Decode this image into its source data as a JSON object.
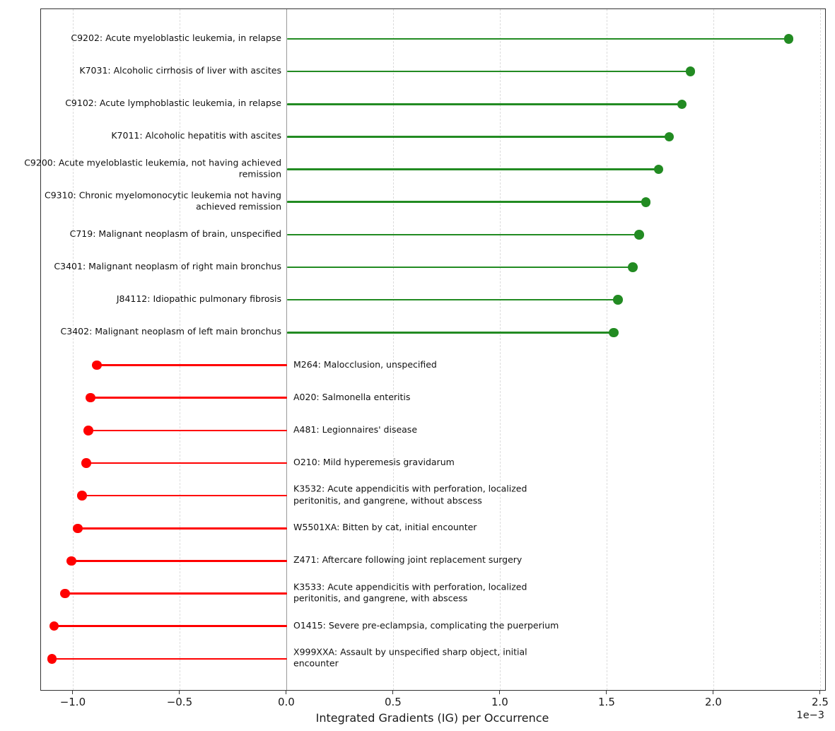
{
  "figure": {
    "background": "#ffffff"
  },
  "chart_data": {
    "type": "lollipop",
    "orientation": "horizontal",
    "title": "",
    "xlabel": "Integrated Gradients (IG) per Occurrence",
    "ylabel": "",
    "x_multiplier": "1e−3",
    "values_unit": "1e-3",
    "xlim": [
      -1.152,
      2.52
    ],
    "xticks": [
      -1.0,
      -0.5,
      0.0,
      0.5,
      1.0,
      1.5,
      2.0,
      2.5
    ],
    "grid": "vertical-dashed",
    "zero_line": true,
    "positive_color": "#228B22",
    "negative_color": "#ff0000",
    "items": [
      {
        "label": "C9202: Acute myeloblastic leukemia, in relapse",
        "value": 2.35
      },
      {
        "label": "K7031: Alcoholic cirrhosis of liver with ascites",
        "value": 1.89
      },
      {
        "label": "C9102: Acute lymphoblastic leukemia, in relapse",
        "value": 1.85
      },
      {
        "label": "K7011: Alcoholic hepatitis with ascites",
        "value": 1.79
      },
      {
        "label": "C9200: Acute myeloblastic leukemia, not having achieved\nremission",
        "value": 1.74
      },
      {
        "label": "C9310: Chronic myelomonocytic leukemia not having\nachieved remission",
        "value": 1.68
      },
      {
        "label": "C719: Malignant neoplasm of brain, unspecified",
        "value": 1.65
      },
      {
        "label": "C3401: Malignant neoplasm of right main bronchus",
        "value": 1.62
      },
      {
        "label": "J84112: Idiopathic pulmonary fibrosis",
        "value": 1.55
      },
      {
        "label": "C3402: Malignant neoplasm of left main bronchus",
        "value": 1.53
      },
      {
        "label": "M264: Malocclusion, unspecified",
        "value": -0.89
      },
      {
        "label": "A020: Salmonella enteritis",
        "value": -0.92
      },
      {
        "label": "A481: Legionnaires' disease",
        "value": -0.93
      },
      {
        "label": "O210: Mild hyperemesis gravidarum",
        "value": -0.94
      },
      {
        "label": "K3532: Acute appendicitis with perforation, localized\nperitonitis, and gangrene, without abscess",
        "value": -0.96
      },
      {
        "label": "W5501XA: Bitten by cat, initial encounter",
        "value": -0.98
      },
      {
        "label": "Z471: Aftercare following joint replacement surgery",
        "value": -1.01
      },
      {
        "label": "K3533: Acute appendicitis with perforation, localized\nperitonitis, and gangrene, with abscess",
        "value": -1.04
      },
      {
        "label": "O1415: Severe pre-eclampsia, complicating the puerperium",
        "value": -1.09
      },
      {
        "label": "X999XXA: Assault by unspecified sharp object, initial\nencounter",
        "value": -1.1
      }
    ],
    "layout": {
      "first_row_center_y": 54,
      "row_spacing": 46.15
    }
  }
}
